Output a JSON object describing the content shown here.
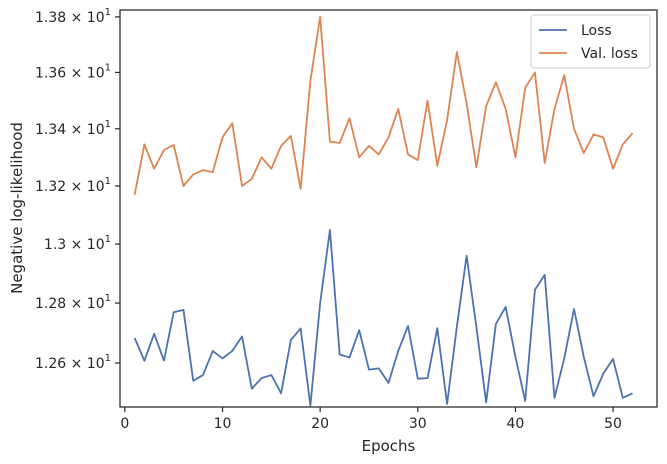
{
  "chart_data": {
    "type": "line",
    "title": "",
    "xlabel": "Epochs",
    "ylabel": "Negative log-likelihood",
    "xlim": [
      -0.5,
      54.5
    ],
    "ylim": [
      12.455,
      13.825
    ],
    "yscale": "log",
    "grid": false,
    "legend_position": "top-right",
    "x_ticks": [
      0,
      10,
      20,
      30,
      40,
      50
    ],
    "y_ticks": [
      {
        "value": 12.6,
        "mantissa": "1.26",
        "base": "10",
        "exponent": "1"
      },
      {
        "value": 12.8,
        "mantissa": "1.28",
        "base": "10",
        "exponent": "1"
      },
      {
        "value": 13.0,
        "mantissa": "1.3",
        "base": "10",
        "exponent": "1"
      },
      {
        "value": 13.2,
        "mantissa": "1.32",
        "base": "10",
        "exponent": "1"
      },
      {
        "value": 13.4,
        "mantissa": "1.34",
        "base": "10",
        "exponent": "1"
      },
      {
        "value": 13.6,
        "mantissa": "1.36",
        "base": "10",
        "exponent": "1"
      },
      {
        "value": 13.8,
        "mantissa": "1.38",
        "base": "10",
        "exponent": "1"
      }
    ],
    "x": [
      1,
      2,
      3,
      4,
      5,
      6,
      7,
      8,
      9,
      10,
      11,
      12,
      13,
      14,
      15,
      16,
      17,
      18,
      19,
      20,
      21,
      22,
      23,
      24,
      25,
      26,
      27,
      28,
      29,
      30,
      31,
      32,
      33,
      34,
      35,
      36,
      37,
      38,
      39,
      40,
      41,
      42,
      43,
      44,
      45,
      46,
      47,
      48,
      49,
      50,
      51,
      52
    ],
    "series": [
      {
        "name": "Loss",
        "color": "#4c72b0",
        "values": [
          12.683,
          12.607,
          12.697,
          12.608,
          12.769,
          12.777,
          12.541,
          12.56,
          12.64,
          12.615,
          12.64,
          12.688,
          12.515,
          12.55,
          12.56,
          12.5,
          12.676,
          12.715,
          12.46,
          12.8,
          13.048,
          12.628,
          12.618,
          12.709,
          12.578,
          12.582,
          12.534,
          12.64,
          12.723,
          12.548,
          12.55,
          12.716,
          12.465,
          12.72,
          12.96,
          12.72,
          12.47,
          12.73,
          12.787,
          12.62,
          12.475,
          12.845,
          12.895,
          12.485,
          12.615,
          12.78,
          12.62,
          12.49,
          12.565,
          12.613,
          12.485,
          12.5
        ]
      },
      {
        "name": "Val. loss",
        "color": "#dd8452",
        "values": [
          13.17,
          13.345,
          13.26,
          13.325,
          13.343,
          13.2,
          13.24,
          13.255,
          13.248,
          13.37,
          13.42,
          13.2,
          13.225,
          13.3,
          13.26,
          13.34,
          13.375,
          13.19,
          13.57,
          13.8,
          13.355,
          13.35,
          13.437,
          13.3,
          13.34,
          13.31,
          13.37,
          13.47,
          13.31,
          13.29,
          13.5,
          13.27,
          13.43,
          13.673,
          13.49,
          13.265,
          13.48,
          13.565,
          13.47,
          13.3,
          13.545,
          13.6,
          13.28,
          13.47,
          13.59,
          13.4,
          13.315,
          13.38,
          13.37,
          13.26,
          13.345,
          13.385
        ]
      }
    ]
  }
}
